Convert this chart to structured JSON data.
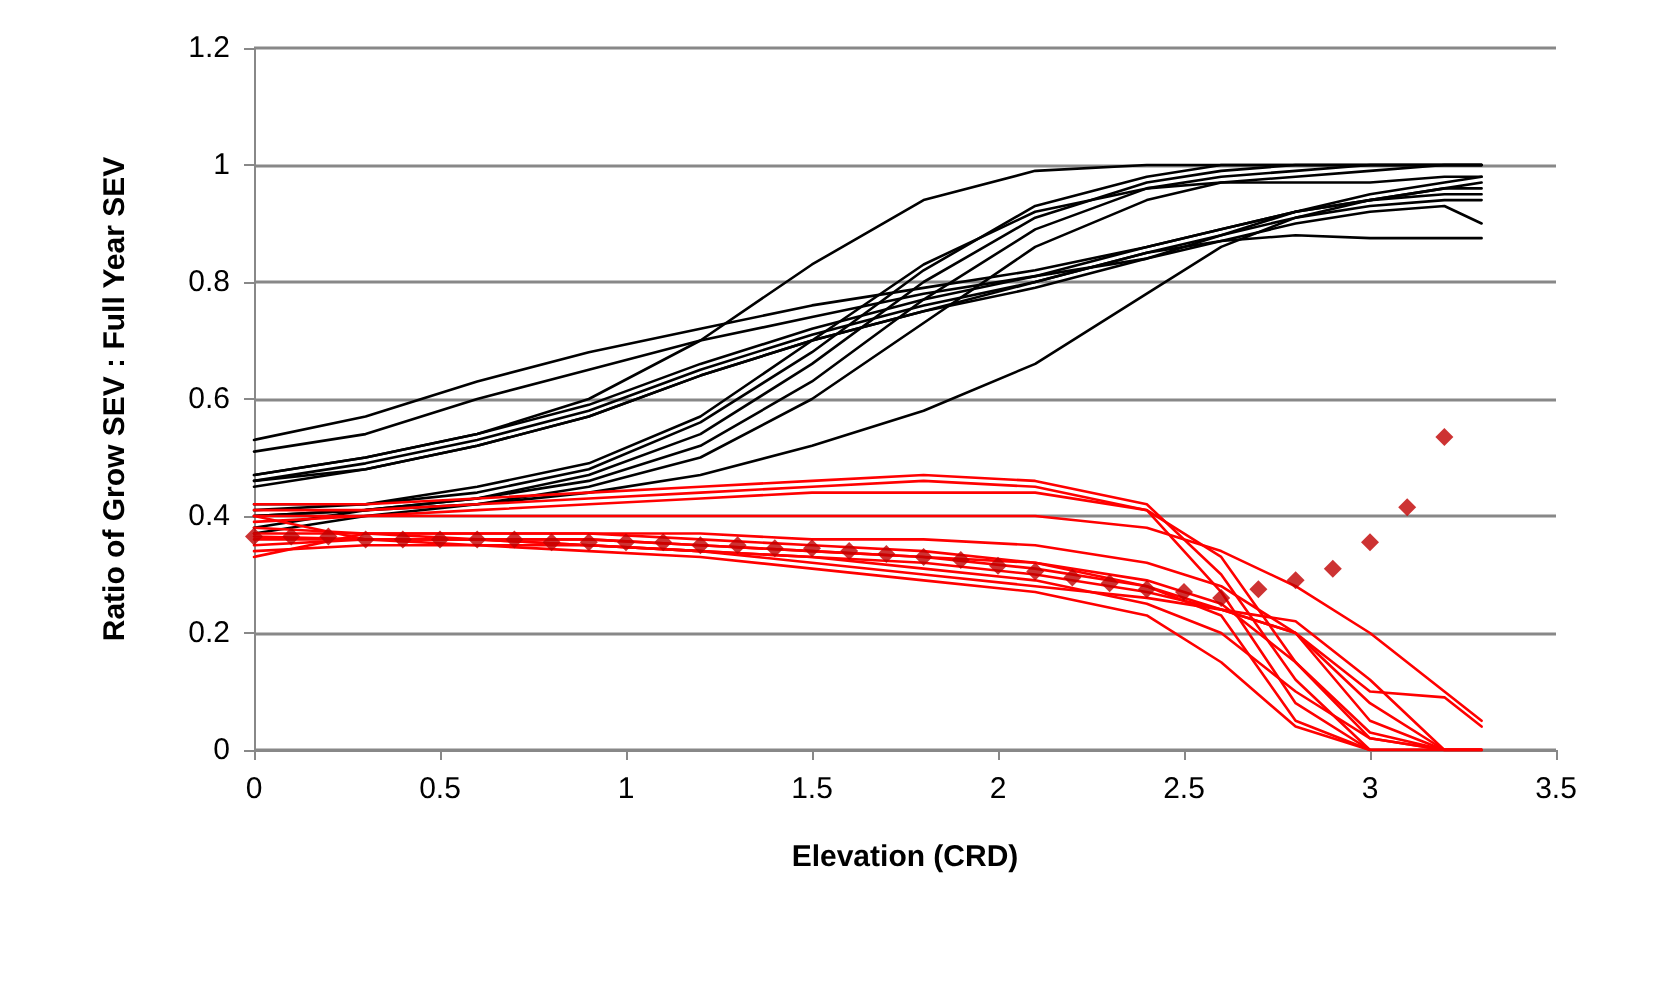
{
  "chart_data": {
    "type": "line",
    "xlabel": "Elevation (CRD)",
    "ylabel": "Ratio of Grow SEV : Full Year SEV",
    "x": [
      0,
      0.3,
      0.6,
      0.9,
      1.2,
      1.5,
      1.8,
      2.1,
      2.4,
      2.6,
      2.8,
      3.0,
      3.2,
      3.3
    ],
    "xlim": [
      0,
      3.5
    ],
    "xticks": [
      0,
      0.5,
      1,
      1.5,
      2,
      2.5,
      3,
      3.5
    ],
    "ylim": [
      0,
      1.2
    ],
    "yticks": [
      0,
      0.2,
      0.4,
      0.6,
      0.8,
      1,
      1.2
    ],
    "grid": "y",
    "marker": "none",
    "line_style": "solid",
    "series": [
      {
        "color": "#000000",
        "values": [
          0.53,
          0.57,
          0.63,
          0.68,
          0.72,
          0.76,
          0.79,
          0.82,
          0.86,
          0.89,
          0.92,
          0.95,
          0.97,
          0.98
        ]
      },
      {
        "color": "#000000",
        "values": [
          0.51,
          0.54,
          0.6,
          0.65,
          0.7,
          0.74,
          0.78,
          0.81,
          0.84,
          0.88,
          0.92,
          0.94,
          0.96,
          0.97
        ]
      },
      {
        "color": "#000000",
        "values": [
          0.47,
          0.5,
          0.54,
          0.6,
          0.7,
          0.83,
          0.94,
          0.99,
          1,
          1,
          1,
          1,
          1,
          1
        ]
      },
      {
        "color": "#000000",
        "values": [
          0.46,
          0.49,
          0.53,
          0.58,
          0.65,
          0.71,
          0.76,
          0.8,
          0.85,
          0.88,
          0.91,
          0.93,
          0.94,
          0.94
        ]
      },
      {
        "color": "#000000",
        "values": [
          0.47,
          0.5,
          0.54,
          0.59,
          0.66,
          0.72,
          0.77,
          0.81,
          0.86,
          0.89,
          0.92,
          0.94,
          0.95,
          0.95
        ]
      },
      {
        "color": "#000000",
        "values": [
          0.45,
          0.48,
          0.52,
          0.57,
          0.64,
          0.7,
          0.75,
          0.79,
          0.84,
          0.87,
          0.9,
          0.92,
          0.93,
          0.9
        ]
      },
      {
        "color": "#000000",
        "values": [
          0.46,
          0.48,
          0.52,
          0.57,
          0.64,
          0.7,
          0.75,
          0.8,
          0.85,
          0.87,
          0.88,
          0.875,
          0.875,
          0.875
        ]
      },
      {
        "color": "#000000",
        "values": [
          0.42,
          0.42,
          0.44,
          0.48,
          0.56,
          0.68,
          0.82,
          0.93,
          0.98,
          1,
          1,
          1,
          1,
          1
        ]
      },
      {
        "color": "#000000",
        "values": [
          0.4,
          0.41,
          0.43,
          0.47,
          0.54,
          0.66,
          0.8,
          0.91,
          0.97,
          0.99,
          1,
          1,
          1,
          1
        ]
      },
      {
        "color": "#000000",
        "values": [
          0.38,
          0.41,
          0.43,
          0.46,
          0.52,
          0.63,
          0.77,
          0.89,
          0.96,
          0.98,
          0.99,
          1,
          1,
          1
        ]
      },
      {
        "color": "#000000",
        "values": [
          0.41,
          0.42,
          0.45,
          0.49,
          0.57,
          0.7,
          0.83,
          0.92,
          0.96,
          0.97,
          0.97,
          0.97,
          0.98,
          0.98
        ]
      },
      {
        "color": "#000000",
        "values": [
          0.37,
          0.4,
          0.42,
          0.45,
          0.5,
          0.6,
          0.73,
          0.86,
          0.94,
          0.97,
          0.98,
          0.99,
          1,
          1
        ]
      },
      {
        "color": "#000000",
        "values": [
          0.4,
          0.41,
          0.42,
          0.44,
          0.47,
          0.52,
          0.58,
          0.66,
          0.78,
          0.86,
          0.91,
          0.94,
          0.96,
          0.96
        ]
      },
      {
        "color": "#ff0000",
        "values": [
          0.42,
          0.42,
          0.43,
          0.44,
          0.45,
          0.46,
          0.47,
          0.46,
          0.42,
          0.3,
          0.12,
          0,
          0,
          0
        ]
      },
      {
        "color": "#ff0000",
        "values": [
          0.41,
          0.41,
          0.42,
          0.43,
          0.44,
          0.45,
          0.46,
          0.45,
          0.41,
          0.27,
          0.08,
          0,
          0,
          0
        ]
      },
      {
        "color": "#ff0000",
        "values": [
          0.39,
          0.4,
          0.41,
          0.42,
          0.43,
          0.44,
          0.44,
          0.44,
          0.41,
          0.33,
          0.15,
          0.02,
          0,
          0
        ]
      },
      {
        "color": "#ff0000",
        "values": [
          0.4,
          0.4,
          0.4,
          0.4,
          0.4,
          0.4,
          0.4,
          0.4,
          0.38,
          0.34,
          0.28,
          0.2,
          0.1,
          0.05
        ]
      },
      {
        "color": "#ff0000",
        "values": [
          0.37,
          0.37,
          0.37,
          0.37,
          0.37,
          0.36,
          0.36,
          0.35,
          0.32,
          0.28,
          0.2,
          0.05,
          0,
          0
        ]
      },
      {
        "color": "#ff0000",
        "values": [
          0.38,
          0.37,
          0.37,
          0.37,
          0.36,
          0.35,
          0.34,
          0.32,
          0.29,
          0.25,
          0.15,
          0.03,
          0,
          0
        ]
      },
      {
        "color": "#ff0000",
        "values": [
          0.36,
          0.36,
          0.36,
          0.36,
          0.35,
          0.34,
          0.33,
          0.31,
          0.28,
          0.23,
          0.05,
          0,
          0,
          0
        ]
      },
      {
        "color": "#ff0000",
        "values": [
          0.365,
          0.36,
          0.36,
          0.35,
          0.34,
          0.32,
          0.3,
          0.28,
          0.26,
          0.24,
          0.2,
          0.1,
          0.09,
          0.04
        ]
      },
      {
        "color": "#ff0000",
        "values": [
          0.4,
          0.36,
          0.36,
          0.35,
          0.34,
          0.33,
          0.32,
          0.3,
          0.27,
          0.24,
          0.22,
          0.12,
          0,
          0
        ]
      },
      {
        "color": "#ff0000",
        "values": [
          0.35,
          0.36,
          0.35,
          0.35,
          0.34,
          0.33,
          0.31,
          0.29,
          0.25,
          0.2,
          0.1,
          0.02,
          0,
          0
        ]
      },
      {
        "color": "#ff0000",
        "values": [
          0.34,
          0.35,
          0.35,
          0.34,
          0.33,
          0.31,
          0.29,
          0.27,
          0.23,
          0.15,
          0.04,
          0,
          0,
          0
        ]
      },
      {
        "color": "#ff0000",
        "values": [
          0.33,
          0.37,
          0.36,
          0.36,
          0.35,
          0.34,
          0.33,
          0.32,
          0.28,
          0.24,
          0.2,
          0.08,
          0,
          0
        ]
      },
      {
        "type": "scatter",
        "marker": "diamond",
        "color": "#c00000",
        "x": [
          0,
          0.1,
          0.2,
          0.3,
          0.4,
          0.5,
          0.6,
          0.7,
          0.8,
          0.9,
          1,
          1.1,
          1.2,
          1.3,
          1.4,
          1.5,
          1.6,
          1.7,
          1.8,
          1.9,
          2,
          2.1,
          2.2,
          2.3,
          2.4,
          2.5,
          2.6,
          2.7,
          2.8,
          2.9,
          3,
          3.1,
          3.2
        ],
        "values": [
          0.365,
          0.365,
          0.365,
          0.36,
          0.36,
          0.36,
          0.36,
          0.36,
          0.355,
          0.355,
          0.355,
          0.355,
          0.35,
          0.35,
          0.345,
          0.345,
          0.34,
          0.335,
          0.33,
          0.325,
          0.315,
          0.305,
          0.295,
          0.285,
          0.275,
          0.27,
          0.26,
          0.275,
          0.29,
          0.31,
          0.355,
          0.415,
          0.535
        ]
      }
    ]
  }
}
